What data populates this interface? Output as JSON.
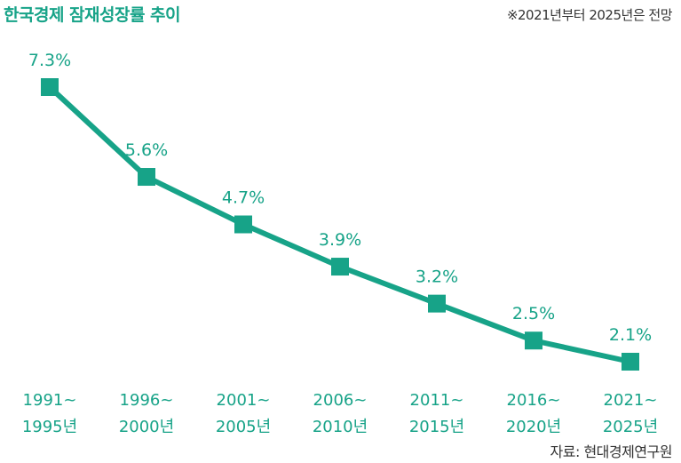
{
  "title": "한국경제 잠재성장률 추이",
  "note": "※2021년부터 2025년은 전망",
  "source": "자료: 현대경제연구원",
  "colors": {
    "accent": "#17a388"
  },
  "chart_data": {
    "type": "line",
    "title": "한국경제 잠재성장률 추이",
    "categories": [
      [
        "1991~",
        "1995년"
      ],
      [
        "1996~",
        "2000년"
      ],
      [
        "2001~",
        "2005년"
      ],
      [
        "2006~",
        "2010년"
      ],
      [
        "2011~",
        "2015년"
      ],
      [
        "2016~",
        "2020년"
      ],
      [
        "2021~",
        "2025년"
      ]
    ],
    "values": [
      7.3,
      5.6,
      4.7,
      3.9,
      3.2,
      2.5,
      2.1
    ],
    "value_labels": [
      "7.3%",
      "5.6%",
      "4.7%",
      "3.9%",
      "3.2%",
      "2.5%",
      "2.1%"
    ],
    "ylim": [
      2.1,
      7.3
    ],
    "grid": false,
    "legend": false
  }
}
